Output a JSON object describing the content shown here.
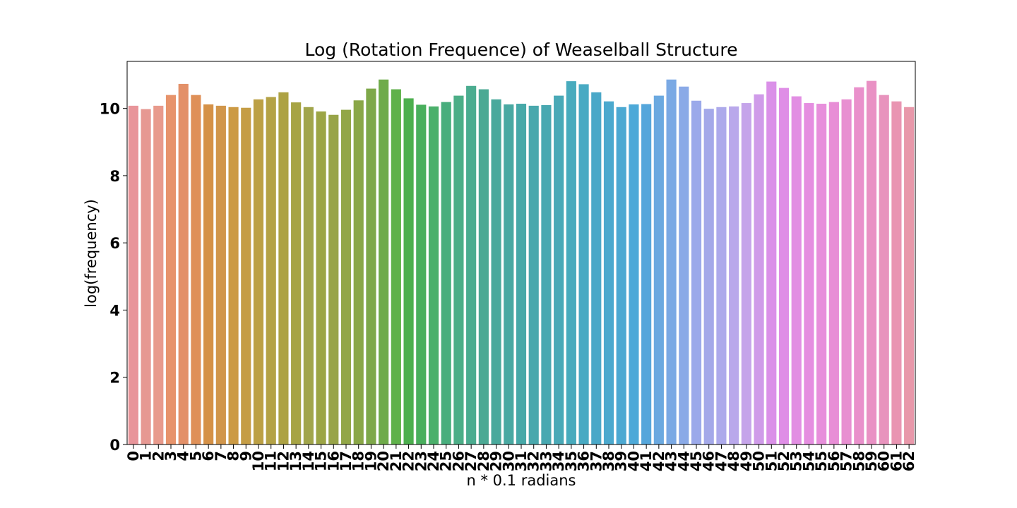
{
  "chart_data": {
    "type": "bar",
    "title": "Log (Rotation Frequence) of Weaselball Structure",
    "xlabel": "n * 0.1 radians",
    "ylabel": "log(frequency)",
    "ylim": [
      0,
      11.4
    ],
    "yticks": [
      0,
      2,
      4,
      6,
      8,
      10
    ],
    "grid": false,
    "legend": "none",
    "categories": [
      "0",
      "1",
      "2",
      "3",
      "4",
      "5",
      "6",
      "7",
      "8",
      "9",
      "10",
      "11",
      "12",
      "13",
      "14",
      "15",
      "16",
      "17",
      "18",
      "19",
      "20",
      "21",
      "22",
      "23",
      "24",
      "25",
      "26",
      "27",
      "28",
      "29",
      "30",
      "31",
      "32",
      "33",
      "34",
      "35",
      "36",
      "37",
      "38",
      "39",
      "40",
      "41",
      "42",
      "43",
      "44",
      "45",
      "46",
      "47",
      "48",
      "49",
      "50",
      "51",
      "52",
      "53",
      "54",
      "55",
      "56",
      "57",
      "58",
      "59",
      "60",
      "61",
      "62"
    ],
    "values": [
      10.08,
      9.98,
      10.08,
      10.4,
      10.73,
      10.4,
      10.12,
      10.08,
      10.04,
      10.02,
      10.27,
      10.34,
      10.48,
      10.18,
      10.04,
      9.91,
      9.81,
      9.96,
      10.24,
      10.59,
      10.86,
      10.57,
      10.3,
      10.11,
      10.06,
      10.19,
      10.38,
      10.67,
      10.57,
      10.27,
      10.12,
      10.14,
      10.08,
      10.1,
      10.38,
      10.81,
      10.72,
      10.48,
      10.21,
      10.04,
      10.12,
      10.13,
      10.38,
      10.86,
      10.65,
      10.23,
      9.99,
      10.04,
      10.06,
      10.16,
      10.42,
      10.8,
      10.61,
      10.36,
      10.16,
      10.14,
      10.19,
      10.27,
      10.63,
      10.82,
      10.4,
      10.21,
      10.04
    ],
    "colors": [
      "#e8959a",
      "#e69892",
      "#e89a8c",
      "#e7936b",
      "#e39068",
      "#df9058",
      "#d59147",
      "#d1964b",
      "#cc9a44",
      "#c59d45",
      "#bca045",
      "#b4a246",
      "#ada243",
      "#a7a444",
      "#a1a54b",
      "#9ca545",
      "#98a448",
      "#92a647",
      "#8aa747",
      "#7ea84a",
      "#6fab4a",
      "#5fb14a",
      "#4caf4e",
      "#49af5d",
      "#4bb06b",
      "#48ae7d",
      "#4cae87",
      "#4bac8f",
      "#4ca994",
      "#49a99c",
      "#49a9a2",
      "#47a9a8",
      "#49a8ad",
      "#48a8b1",
      "#49a9b7",
      "#48abbd",
      "#48aac3",
      "#4aa8c8",
      "#4ba9ce",
      "#4ca9d2",
      "#4da9d8",
      "#55a6db",
      "#6ba9e0",
      "#7aa9e4",
      "#8aaae7",
      "#9ba9ea",
      "#a4a9e9",
      "#adaaeb",
      "#b9a8eb",
      "#c5a4ea",
      "#cf9be9",
      "#da90e8",
      "#df8ee6",
      "#e28ee3",
      "#e58ee0",
      "#e78fdb",
      "#e88ed6",
      "#e88fd1",
      "#e990cb",
      "#e991c4",
      "#e893bd",
      "#e995b2",
      "#e898aa"
    ]
  }
}
